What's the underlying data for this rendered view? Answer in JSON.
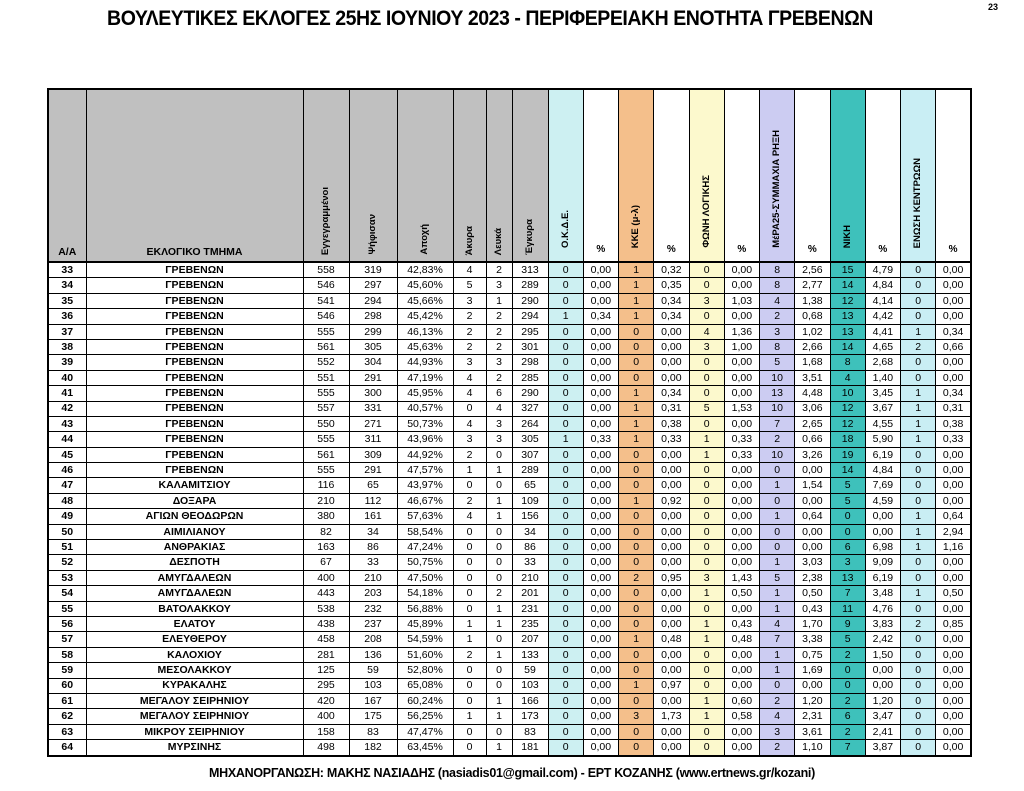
{
  "page": {
    "title": "ΒΟΥΛΕΥΤΙΚΕΣ ΕΚΛΟΓΕΣ 25ΗΣ ΙΟΥΝΙΟΥ 2023 - ΠΕΡΙΦΕΡΕΙΑΚΗ ΕΝΟΤΗΤΑ ΓΡΕΒΕΝΩΝ",
    "number": "23",
    "footer": "ΜΗΧΑΝΟΡΓΑΝΩΣΗ: ΜΑΚΗΣ ΝΑΣΙΑΔΗΣ (nasiadis01@gmail.com) - ΕΡΤ ΚΟΖΑΝΗΣ (www.ertnews.gr/kozani)"
  },
  "table": {
    "headers": {
      "aa": "Α/Α",
      "section": "ΕΚΛΟΓΙΚΟ ΤΜΗΜΑ",
      "stats": [
        "Εγγεγραμμένοι",
        "Ψήφισαν",
        "Αποχή",
        "Άκυρα",
        "Λευκά",
        "Έγκυρα"
      ],
      "percent": "%"
    },
    "header_bg": "#c0c0c0",
    "parties": [
      {
        "name": "Ο.Κ.Δ.Ε.",
        "color": "#cdf0f2"
      },
      {
        "name": "ΚΚΕ (μ-λ)",
        "color": "#f4bf8b"
      },
      {
        "name": "ΦΩΝΗ ΛΟΓΙΚΗΣ",
        "color": "#fcf9cd"
      },
      {
        "name": "ΜέΡΑ25-ΣΥΜΜΑΧΙΑ ΡΗΞΗ",
        "color": "#ccccf2"
      },
      {
        "name": "ΝΙΚΗ",
        "color": "#3ec1bb"
      },
      {
        "name": "ΕΝΩΣΗ ΚΕΝΤΡΩΩΝ",
        "color": "#c9eef4"
      }
    ],
    "rows": [
      {
        "aa": "33",
        "name": "ΓΡΕΒΕΝΩΝ",
        "stats": [
          "558",
          "319",
          "42,83%",
          "4",
          "2",
          "313"
        ],
        "results": [
          "0",
          "0,00",
          "1",
          "0,32",
          "0",
          "0,00",
          "8",
          "2,56",
          "15",
          "4,79",
          "0",
          "0,00"
        ]
      },
      {
        "aa": "34",
        "name": "ΓΡΕΒΕΝΩΝ",
        "stats": [
          "546",
          "297",
          "45,60%",
          "5",
          "3",
          "289"
        ],
        "results": [
          "0",
          "0,00",
          "1",
          "0,35",
          "0",
          "0,00",
          "8",
          "2,77",
          "14",
          "4,84",
          "0",
          "0,00"
        ]
      },
      {
        "aa": "35",
        "name": "ΓΡΕΒΕΝΩΝ",
        "stats": [
          "541",
          "294",
          "45,66%",
          "3",
          "1",
          "290"
        ],
        "results": [
          "0",
          "0,00",
          "1",
          "0,34",
          "3",
          "1,03",
          "4",
          "1,38",
          "12",
          "4,14",
          "0",
          "0,00"
        ]
      },
      {
        "aa": "36",
        "name": "ΓΡΕΒΕΝΩΝ",
        "stats": [
          "546",
          "298",
          "45,42%",
          "2",
          "2",
          "294"
        ],
        "results": [
          "1",
          "0,34",
          "1",
          "0,34",
          "0",
          "0,00",
          "2",
          "0,68",
          "13",
          "4,42",
          "0",
          "0,00"
        ]
      },
      {
        "aa": "37",
        "name": "ΓΡΕΒΕΝΩΝ",
        "stats": [
          "555",
          "299",
          "46,13%",
          "2",
          "2",
          "295"
        ],
        "results": [
          "0",
          "0,00",
          "0",
          "0,00",
          "4",
          "1,36",
          "3",
          "1,02",
          "13",
          "4,41",
          "1",
          "0,34"
        ]
      },
      {
        "aa": "38",
        "name": "ΓΡΕΒΕΝΩΝ",
        "stats": [
          "561",
          "305",
          "45,63%",
          "2",
          "2",
          "301"
        ],
        "results": [
          "0",
          "0,00",
          "0",
          "0,00",
          "3",
          "1,00",
          "8",
          "2,66",
          "14",
          "4,65",
          "2",
          "0,66"
        ]
      },
      {
        "aa": "39",
        "name": "ΓΡΕΒΕΝΩΝ",
        "stats": [
          "552",
          "304",
          "44,93%",
          "3",
          "3",
          "298"
        ],
        "results": [
          "0",
          "0,00",
          "0",
          "0,00",
          "0",
          "0,00",
          "5",
          "1,68",
          "8",
          "2,68",
          "0",
          "0,00"
        ]
      },
      {
        "aa": "40",
        "name": "ΓΡΕΒΕΝΩΝ",
        "stats": [
          "551",
          "291",
          "47,19%",
          "4",
          "2",
          "285"
        ],
        "results": [
          "0",
          "0,00",
          "0",
          "0,00",
          "0",
          "0,00",
          "10",
          "3,51",
          "4",
          "1,40",
          "0",
          "0,00"
        ]
      },
      {
        "aa": "41",
        "name": "ΓΡΕΒΕΝΩΝ",
        "stats": [
          "555",
          "300",
          "45,95%",
          "4",
          "6",
          "290"
        ],
        "results": [
          "0",
          "0,00",
          "1",
          "0,34",
          "0",
          "0,00",
          "13",
          "4,48",
          "10",
          "3,45",
          "1",
          "0,34"
        ]
      },
      {
        "aa": "42",
        "name": "ΓΡΕΒΕΝΩΝ",
        "stats": [
          "557",
          "331",
          "40,57%",
          "0",
          "4",
          "327"
        ],
        "results": [
          "0",
          "0,00",
          "1",
          "0,31",
          "5",
          "1,53",
          "10",
          "3,06",
          "12",
          "3,67",
          "1",
          "0,31"
        ]
      },
      {
        "aa": "43",
        "name": "ΓΡΕΒΕΝΩΝ",
        "stats": [
          "550",
          "271",
          "50,73%",
          "4",
          "3",
          "264"
        ],
        "results": [
          "0",
          "0,00",
          "1",
          "0,38",
          "0",
          "0,00",
          "7",
          "2,65",
          "12",
          "4,55",
          "1",
          "0,38"
        ]
      },
      {
        "aa": "44",
        "name": "ΓΡΕΒΕΝΩΝ",
        "stats": [
          "555",
          "311",
          "43,96%",
          "3",
          "3",
          "305"
        ],
        "results": [
          "1",
          "0,33",
          "1",
          "0,33",
          "1",
          "0,33",
          "2",
          "0,66",
          "18",
          "5,90",
          "1",
          "0,33"
        ]
      },
      {
        "aa": "45",
        "name": "ΓΡΕΒΕΝΩΝ",
        "stats": [
          "561",
          "309",
          "44,92%",
          "2",
          "0",
          "307"
        ],
        "results": [
          "0",
          "0,00",
          "0",
          "0,00",
          "1",
          "0,33",
          "10",
          "3,26",
          "19",
          "6,19",
          "0",
          "0,00"
        ]
      },
      {
        "aa": "46",
        "name": "ΓΡΕΒΕΝΩΝ",
        "stats": [
          "555",
          "291",
          "47,57%",
          "1",
          "1",
          "289"
        ],
        "results": [
          "0",
          "0,00",
          "0",
          "0,00",
          "0",
          "0,00",
          "0",
          "0,00",
          "14",
          "4,84",
          "0",
          "0,00"
        ]
      },
      {
        "aa": "47",
        "name": "ΚΑΛΑΜΙΤΣΙΟΥ",
        "stats": [
          "116",
          "65",
          "43,97%",
          "0",
          "0",
          "65"
        ],
        "results": [
          "0",
          "0,00",
          "0",
          "0,00",
          "0",
          "0,00",
          "1",
          "1,54",
          "5",
          "7,69",
          "0",
          "0,00"
        ]
      },
      {
        "aa": "48",
        "name": "ΔΟΞΑΡΑ",
        "stats": [
          "210",
          "112",
          "46,67%",
          "2",
          "1",
          "109"
        ],
        "results": [
          "0",
          "0,00",
          "1",
          "0,92",
          "0",
          "0,00",
          "0",
          "0,00",
          "5",
          "4,59",
          "0",
          "0,00"
        ]
      },
      {
        "aa": "49",
        "name": "ΑΓΙΩΝ ΘΕΟΔΩΡΩΝ",
        "stats": [
          "380",
          "161",
          "57,63%",
          "4",
          "1",
          "156"
        ],
        "results": [
          "0",
          "0,00",
          "0",
          "0,00",
          "0",
          "0,00",
          "1",
          "0,64",
          "0",
          "0,00",
          "1",
          "0,64"
        ]
      },
      {
        "aa": "50",
        "name": "ΑΙΜΙΛΙΑΝΟΥ",
        "stats": [
          "82",
          "34",
          "58,54%",
          "0",
          "0",
          "34"
        ],
        "results": [
          "0",
          "0,00",
          "0",
          "0,00",
          "0",
          "0,00",
          "0",
          "0,00",
          "0",
          "0,00",
          "1",
          "2,94"
        ]
      },
      {
        "aa": "51",
        "name": "ΑΝΘΡΑΚΙΑΣ",
        "stats": [
          "163",
          "86",
          "47,24%",
          "0",
          "0",
          "86"
        ],
        "results": [
          "0",
          "0,00",
          "0",
          "0,00",
          "0",
          "0,00",
          "0",
          "0,00",
          "6",
          "6,98",
          "1",
          "1,16"
        ]
      },
      {
        "aa": "52",
        "name": "ΔΕΣΠΟΤΗ",
        "stats": [
          "67",
          "33",
          "50,75%",
          "0",
          "0",
          "33"
        ],
        "results": [
          "0",
          "0,00",
          "0",
          "0,00",
          "0",
          "0,00",
          "1",
          "3,03",
          "3",
          "9,09",
          "0",
          "0,00"
        ]
      },
      {
        "aa": "53",
        "name": "ΑΜΥΓΔΑΛΕΩΝ",
        "stats": [
          "400",
          "210",
          "47,50%",
          "0",
          "0",
          "210"
        ],
        "results": [
          "0",
          "0,00",
          "2",
          "0,95",
          "3",
          "1,43",
          "5",
          "2,38",
          "13",
          "6,19",
          "0",
          "0,00"
        ]
      },
      {
        "aa": "54",
        "name": "ΑΜΥΓΔΑΛΕΩΝ",
        "stats": [
          "443",
          "203",
          "54,18%",
          "0",
          "2",
          "201"
        ],
        "results": [
          "0",
          "0,00",
          "0",
          "0,00",
          "1",
          "0,50",
          "1",
          "0,50",
          "7",
          "3,48",
          "1",
          "0,50"
        ]
      },
      {
        "aa": "55",
        "name": "ΒΑΤΟΛΑΚΚΟΥ",
        "stats": [
          "538",
          "232",
          "56,88%",
          "0",
          "1",
          "231"
        ],
        "results": [
          "0",
          "0,00",
          "0",
          "0,00",
          "0",
          "0,00",
          "1",
          "0,43",
          "11",
          "4,76",
          "0",
          "0,00"
        ]
      },
      {
        "aa": "56",
        "name": "ΕΛΑΤΟΥ",
        "stats": [
          "438",
          "237",
          "45,89%",
          "1",
          "1",
          "235"
        ],
        "results": [
          "0",
          "0,00",
          "0",
          "0,00",
          "1",
          "0,43",
          "4",
          "1,70",
          "9",
          "3,83",
          "2",
          "0,85"
        ]
      },
      {
        "aa": "57",
        "name": "ΕΛΕΥΘΕΡΟΥ",
        "stats": [
          "458",
          "208",
          "54,59%",
          "1",
          "0",
          "207"
        ],
        "results": [
          "0",
          "0,00",
          "1",
          "0,48",
          "1",
          "0,48",
          "7",
          "3,38",
          "5",
          "2,42",
          "0",
          "0,00"
        ]
      },
      {
        "aa": "58",
        "name": "ΚΑΛΟΧΙΟΥ",
        "stats": [
          "281",
          "136",
          "51,60%",
          "2",
          "1",
          "133"
        ],
        "results": [
          "0",
          "0,00",
          "0",
          "0,00",
          "0",
          "0,00",
          "1",
          "0,75",
          "2",
          "1,50",
          "0",
          "0,00"
        ]
      },
      {
        "aa": "59",
        "name": "ΜΕΣΟΛΑΚΚΟΥ",
        "stats": [
          "125",
          "59",
          "52,80%",
          "0",
          "0",
          "59"
        ],
        "results": [
          "0",
          "0,00",
          "0",
          "0,00",
          "0",
          "0,00",
          "1",
          "1,69",
          "0",
          "0,00",
          "0",
          "0,00"
        ]
      },
      {
        "aa": "60",
        "name": "ΚΥΡΑΚΑΛΗΣ",
        "stats": [
          "295",
          "103",
          "65,08%",
          "0",
          "0",
          "103"
        ],
        "results": [
          "0",
          "0,00",
          "1",
          "0,97",
          "0",
          "0,00",
          "0",
          "0,00",
          "0",
          "0,00",
          "0",
          "0,00"
        ]
      },
      {
        "aa": "61",
        "name": "ΜΕΓΑΛΟΥ ΣΕΙΡΗΝΙΟΥ",
        "stats": [
          "420",
          "167",
          "60,24%",
          "0",
          "1",
          "166"
        ],
        "results": [
          "0",
          "0,00",
          "0",
          "0,00",
          "1",
          "0,60",
          "2",
          "1,20",
          "2",
          "1,20",
          "0",
          "0,00"
        ]
      },
      {
        "aa": "62",
        "name": "ΜΕΓΑΛΟΥ ΣΕΙΡΗΝΙΟΥ",
        "stats": [
          "400",
          "175",
          "56,25%",
          "1",
          "1",
          "173"
        ],
        "results": [
          "0",
          "0,00",
          "3",
          "1,73",
          "1",
          "0,58",
          "4",
          "2,31",
          "6",
          "3,47",
          "0",
          "0,00"
        ]
      },
      {
        "aa": "63",
        "name": "ΜΙΚΡΟΥ ΣΕΙΡΗΝΙΟΥ",
        "stats": [
          "158",
          "83",
          "47,47%",
          "0",
          "0",
          "83"
        ],
        "results": [
          "0",
          "0,00",
          "0",
          "0,00",
          "0",
          "0,00",
          "3",
          "3,61",
          "2",
          "2,41",
          "0",
          "0,00"
        ]
      },
      {
        "aa": "64",
        "name": "ΜΥΡΣΙΝΗΣ",
        "stats": [
          "498",
          "182",
          "63,45%",
          "0",
          "1",
          "181"
        ],
        "results": [
          "0",
          "0,00",
          "0",
          "0,00",
          "0",
          "0,00",
          "2",
          "1,10",
          "7",
          "3,87",
          "0",
          "0,00"
        ]
      }
    ]
  }
}
